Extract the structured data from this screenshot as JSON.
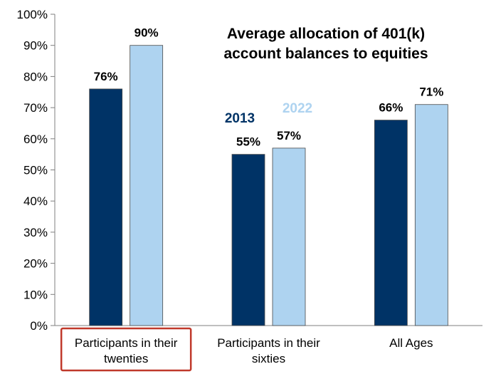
{
  "chart_data": {
    "type": "bar",
    "title_lines": [
      "Average allocation of 401(k)",
      "account balances to equities"
    ],
    "categories": [
      [
        "Participants in their",
        "twenties"
      ],
      [
        "Participants in their",
        "sixties"
      ],
      [
        "All Ages"
      ]
    ],
    "series": [
      {
        "name": "2013",
        "color": "#003366",
        "values": [
          76,
          55,
          66
        ],
        "labels": [
          "76%",
          "55%",
          "66%"
        ]
      },
      {
        "name": "2022",
        "color": "#aed3f0",
        "values": [
          90,
          57,
          71
        ],
        "labels": [
          "90%",
          "57%",
          "71%"
        ]
      }
    ],
    "yticks": [
      "0%",
      "10%",
      "20%",
      "30%",
      "40%",
      "50%",
      "60%",
      "70%",
      "80%",
      "90%",
      "100%"
    ],
    "ylim": [
      0,
      100
    ],
    "highlighted_category": 0,
    "highlight_color": "#c0392b",
    "grid": false,
    "legend_placement": "inline-center"
  }
}
